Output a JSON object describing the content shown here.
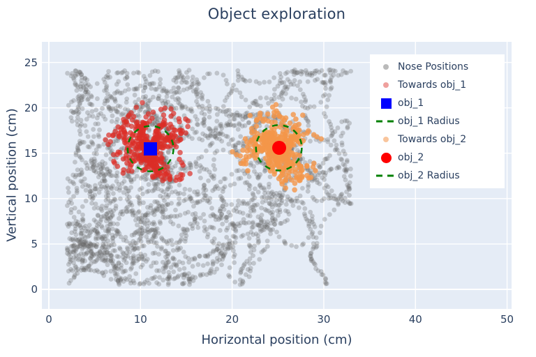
{
  "chart_data": {
    "type": "scatter",
    "title": "Object exploration",
    "xlabel": "Horizontal position (cm)",
    "ylabel": "Vertical position (cm)",
    "x_ticks": [
      0,
      10,
      20,
      30,
      40,
      50
    ],
    "y_ticks": [
      0,
      5,
      10,
      15,
      20,
      25
    ],
    "x_range": [
      -0.76,
      50.49
    ],
    "y_range": [
      -2.15,
      27.27
    ],
    "grid": true,
    "legend_position": "top-right",
    "colors": {
      "plot_bg": "#e5ecf6",
      "grid": "#ffffff",
      "text": "#2a3f5f",
      "nose_positions": "rgba(102,102,102,0.3)",
      "towards_obj_1": "rgba(219,45,38,0.7)",
      "towards_obj_2": "rgba(244,150,74,0.8)",
      "obj_1": "#0000ff",
      "obj_2": "#ff0000",
      "radius_line": "#008000"
    },
    "objects": [
      {
        "name": "obj_1",
        "x": 11.1,
        "y": 15.5,
        "marker": "square",
        "color": "#0000ff",
        "radius_cm": 2.5
      },
      {
        "name": "obj_2",
        "x": 25.1,
        "y": 15.6,
        "marker": "circle",
        "color": "#ff0000",
        "radius_cm": 2.5
      }
    ],
    "series": [
      {
        "name": "Nose Positions",
        "gen": "walk",
        "n": 2600,
        "seed": 20,
        "bounds": [
          2.0,
          33.0,
          0.5,
          24.2
        ],
        "start": [
          16,
          8
        ],
        "size": 3.4,
        "color": "rgba(102,102,102,0.3)"
      },
      {
        "name": "Towards obj_1",
        "gen": "radial",
        "n": 400,
        "seed": 7,
        "center": [
          11.1,
          15.5
        ],
        "max_r": 5.2,
        "size": 3.8,
        "color": "rgba(219,45,38,0.7)"
      },
      {
        "name": "Towards obj_2",
        "gen": "radial",
        "n": 400,
        "seed": 13,
        "center": [
          25.1,
          15.6
        ],
        "max_r": 5.2,
        "size": 3.8,
        "color": "rgba(244,150,74,0.8)"
      }
    ],
    "legend": {
      "items": [
        {
          "label": "Nose Positions",
          "marker": "dot",
          "color": "rgba(102,102,102,0.45)"
        },
        {
          "label": "Towards obj_1",
          "marker": "dot",
          "color": "rgba(219,45,38,0.45)"
        },
        {
          "label": "obj_1",
          "marker": "square",
          "color": "#0000ff"
        },
        {
          "label": "obj_1 Radius",
          "marker": "dash",
          "color": "#008000"
        },
        {
          "label": "Towards obj_2",
          "marker": "dot",
          "color": "rgba(244,150,74,0.55)"
        },
        {
          "label": "obj_2",
          "marker": "circle",
          "color": "#ff0000"
        },
        {
          "label": "obj_2 Radius",
          "marker": "dash",
          "color": "#008000"
        }
      ]
    }
  }
}
